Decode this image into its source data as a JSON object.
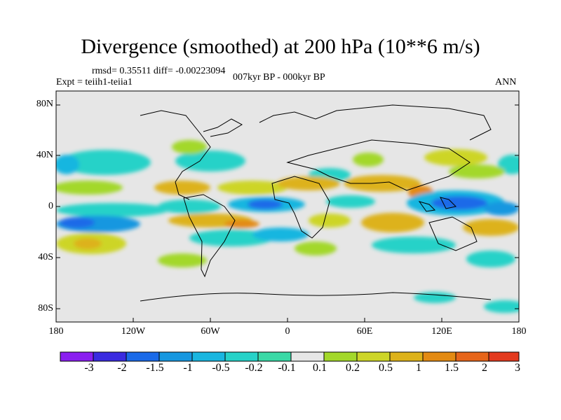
{
  "title": "Divergence (smoothed) at 200 hPa (10**6 m/s)",
  "stats": "rmsd= 0.35511  diff= -0.00223094",
  "expt": "Expt = teiih1-teiia1",
  "period": "007kyr BP - 000kyr BP",
  "season": "ANN",
  "lat_labels": [
    "80N",
    "40N",
    "0",
    "40S",
    "80S"
  ],
  "lon_labels": [
    "180",
    "120W",
    "60W",
    "0",
    "60E",
    "120E",
    "180"
  ],
  "colorbar": {
    "labels": [
      "-3",
      "-2",
      "-1.5",
      "-1",
      "-0.5",
      "-0.2",
      "-0.1",
      "0.1",
      "0.2",
      "0.5",
      "1",
      "1.5",
      "2",
      "3"
    ],
    "colors": [
      "#8a1ef0",
      "#3a2be0",
      "#1a6ae8",
      "#1797e0",
      "#19b6e0",
      "#26d2c8",
      "#3ad9a6",
      "#e6e6e6",
      "#a3d82a",
      "#cdd528",
      "#ddb21a",
      "#e38a12",
      "#e6651a",
      "#e33a1e"
    ]
  }
}
